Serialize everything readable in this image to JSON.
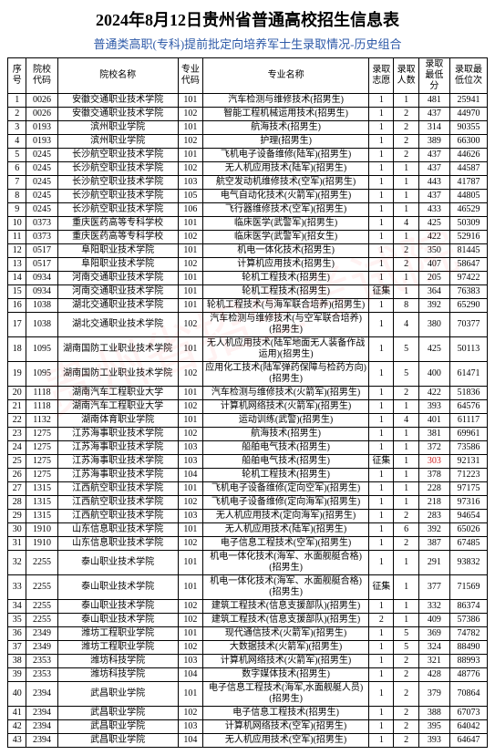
{
  "title": "2024年8月12日贵州省普通高校招生信息表",
  "title_fontsize": 18,
  "title_color": "#000000",
  "subtitle": "普通类高职(专科)提前批定向培养军士生录取情况-历史组合",
  "subtitle_fontsize": 13,
  "subtitle_color": "#2e5aa8",
  "table_fontsize": 10,
  "border_color": "#000000",
  "columns": [
    "序号",
    "院校代码",
    "院校名称",
    "专业代码",
    "专业名称",
    "录取志愿",
    "录取人数",
    "录取最低分",
    "录取最低位次"
  ],
  "rows": [
    [
      "1",
      "0026",
      "安徽交通职业技术学院",
      "101",
      "汽车检测与维修技术(招男生)",
      "1",
      "1",
      "481",
      "25941"
    ],
    [
      "2",
      "0026",
      "安徽交通职业技术学院",
      "102",
      "智能工程机械运用技术(招男生)",
      "1",
      "2",
      "437",
      "44970"
    ],
    [
      "3",
      "0193",
      "滨州职业学院",
      "101",
      "航海技术(招男生)",
      "1",
      "2",
      "314",
      "90355"
    ],
    [
      "4",
      "0193",
      "滨州职业学院",
      "102",
      "护理(招男生)",
      "1",
      "2",
      "389",
      "66300"
    ],
    [
      "5",
      "0245",
      "长沙航空职业技术学院",
      "101",
      "飞机电子设备维修(陆军)(招男生)",
      "1",
      "2",
      "437",
      "44626"
    ],
    [
      "6",
      "0245",
      "长沙航空职业技术学院",
      "102",
      "无人机应用技术(陆军)(招男生)",
      "1",
      "1",
      "437",
      "44587"
    ],
    [
      "7",
      "0245",
      "长沙航空职业技术学院",
      "103",
      "航空发动机维修技术(空军)(招男生)",
      "1",
      "1",
      "443",
      "41787"
    ],
    [
      "8",
      "0245",
      "长沙航空职业技术学院",
      "105",
      "电气自动化技术(火箭军)(招男生)",
      "1",
      "1",
      "437",
      "44805"
    ],
    [
      "9",
      "0245",
      "长沙航空职业技术学院",
      "106",
      "飞行器维修技术(空军)(招男生)",
      "1",
      "1",
      "433",
      "46529"
    ],
    [
      "10",
      "0373",
      "重庆医药高等专科学校",
      "101",
      "临床医学(武警军)(招男生)",
      "1",
      "4",
      "425",
      "50309"
    ],
    [
      "11",
      "0373",
      "重庆医药高等专科学校",
      "102",
      "临床医学(武警军)(招女生)",
      "1",
      "1",
      "422",
      "52916"
    ],
    [
      "12",
      "0517",
      "阜阳职业技术学院",
      "101",
      "机电一体化技术(招男生)",
      "1",
      "2",
      "350",
      "81445"
    ],
    [
      "13",
      "0517",
      "阜阳职业技术学院",
      "102",
      "计算机应用技术(招男生)",
      "1",
      "2",
      "407",
      "58647"
    ],
    [
      "14",
      "0934",
      "河南交通职业技术学院",
      "101",
      "轮机工程技术(招男生)",
      "1",
      "1",
      "205",
      "97422"
    ],
    [
      "15",
      "0934",
      "河南交通职业技术学院",
      "101",
      "轮机工程技术(招男生)",
      "征集",
      "1",
      "364",
      "76383"
    ],
    [
      "16",
      "1038",
      "湖北交通职业技术学院",
      "101",
      "轮机工程技术(与海军联合培养)(招男生)",
      "1",
      "8",
      "392",
      "65290"
    ],
    [
      "17",
      "1038",
      "湖北交通职业技术学院",
      "102",
      "汽车检测与维修技术(与空军联合培养)(招男生)",
      "1",
      "4",
      "380",
      "70377"
    ],
    [
      "18",
      "1095",
      "湖南国防工业职业技术学院",
      "101",
      "无人机应用技术(陆军地面无人装备作战运用)(招男生)",
      "1",
      "5",
      "425",
      "50113"
    ],
    [
      "19",
      "1095",
      "湖南国防工业职业技术学院",
      "102",
      "应用化工技术(陆军弹药保障与检药方向)(招男生)",
      "1",
      "5",
      "400",
      "61471"
    ],
    [
      "20",
      "1118",
      "湖南汽车工程职业大学",
      "101",
      "汽车检测与维修技术(火箭军)(招男生)",
      "1",
      "2",
      "422",
      "51836"
    ],
    [
      "21",
      "1118",
      "湖南汽车工程职业大学",
      "102",
      "计算机网络技术(火箭军)(招男生)",
      "1",
      "1",
      "393",
      "64576"
    ],
    [
      "22",
      "1132",
      "湖南体育职业学院",
      "101",
      "运动训练(武警)(招男生)",
      "1",
      "4",
      "401",
      "61117"
    ],
    [
      "23",
      "1275",
      "江苏海事职业技术学院",
      "102",
      "航海技术(招男生)",
      "1",
      "1",
      "381",
      "69961"
    ],
    [
      "24",
      "1275",
      "江苏海事职业技术学院",
      "103",
      "船舶电气技术(招男生)",
      "1",
      "1",
      "372",
      "73586"
    ],
    [
      "25",
      "1275",
      "江苏海事职业技术学院",
      "103",
      "船舶电气技术(招男生)",
      "征集",
      "1",
      "303",
      "92131"
    ],
    [
      "26",
      "1275",
      "江苏海事职业技术学院",
      "104",
      "轮机工程技术(招男生)",
      "1",
      "1",
      "378",
      "71223"
    ],
    [
      "27",
      "1315",
      "江西航空职业技术学院",
      "101",
      "飞机电子设备维修(定向空军)(招男生)",
      "1",
      "1",
      "228",
      "97175"
    ],
    [
      "28",
      "1315",
      "江西航空职业技术学院",
      "102",
      "飞机电子设备维修(定向海军)(招男生)",
      "1",
      "1",
      "218",
      "97316"
    ],
    [
      "29",
      "1315",
      "江西航空职业技术学院",
      "103",
      "无人机应用技术(定向海军)(招男生)",
      "1",
      "2",
      "283",
      "94654"
    ],
    [
      "30",
      "1910",
      "山东信息职业技术学院",
      "101",
      "无人机应用技术(陆军)(招男生)",
      "1",
      "6",
      "392",
      "65026"
    ],
    [
      "31",
      "1910",
      "山东信息职业技术学院",
      "102",
      "电子信息工程技术(空军)(招男生)",
      "1",
      "2",
      "387",
      "67485"
    ],
    [
      "32",
      "2255",
      "泰山职业技术学院",
      "101",
      "机电一体化技术(海军、水面舰艇合格)(招男生)",
      "1",
      "1",
      "291",
      "93832"
    ],
    [
      "33",
      "2255",
      "泰山职业技术学院",
      "101",
      "机电一体化技术(海军、水面舰艇合格)(招男生)",
      "征集",
      "1",
      "377",
      "71569"
    ],
    [
      "34",
      "2255",
      "泰山职业技术学院",
      "102",
      "建筑工程技术(信息支援部队)(招男生)",
      "1",
      "1",
      "332",
      "86374"
    ],
    [
      "35",
      "2255",
      "泰山职业技术学院",
      "102",
      "建筑工程技术(信息支援部队)(招男生)",
      "2",
      "1",
      "409",
      "57386"
    ],
    [
      "36",
      "2349",
      "潍坊工程职业学院",
      "101",
      "现代通信技术(火箭军)(招男生)",
      "1",
      "5",
      "369",
      "74782"
    ],
    [
      "37",
      "2349",
      "潍坊工程职业学院",
      "102",
      "大数据技术(火箭军)(招男生)",
      "1",
      "5",
      "324",
      "88490"
    ],
    [
      "38",
      "2353",
      "潍坊科技学院",
      "103",
      "计算机网络技术(火箭军)(招男生)",
      "1",
      "2",
      "321",
      "88993"
    ],
    [
      "39",
      "2353",
      "潍坊科技学院",
      "104",
      "数字媒体技术(招男生)",
      "1",
      "2",
      "428",
      "48776"
    ],
    [
      "40",
      "2394",
      "武昌职业学院",
      "101",
      "电子信息工程技术(海军,水面舰艇人员)(招男生)",
      "1",
      "2",
      "379",
      "70864"
    ],
    [
      "41",
      "2394",
      "武昌职业学院",
      "102",
      "电子信息工程技术(招男生)",
      "1",
      "2",
      "388",
      "67073"
    ],
    [
      "42",
      "2394",
      "武昌职业学院",
      "103",
      "计算机网络技术(空军)(招男生)",
      "1",
      "2",
      "395",
      "64042"
    ],
    [
      "43",
      "2394",
      "武昌职业学院",
      "104",
      "无人机应用技术(空军)(招男生)",
      "1",
      "2",
      "393",
      "64647"
    ]
  ],
  "highlight_row_index": 24,
  "highlight_col_index": 7,
  "highlight_color": "#d02020"
}
